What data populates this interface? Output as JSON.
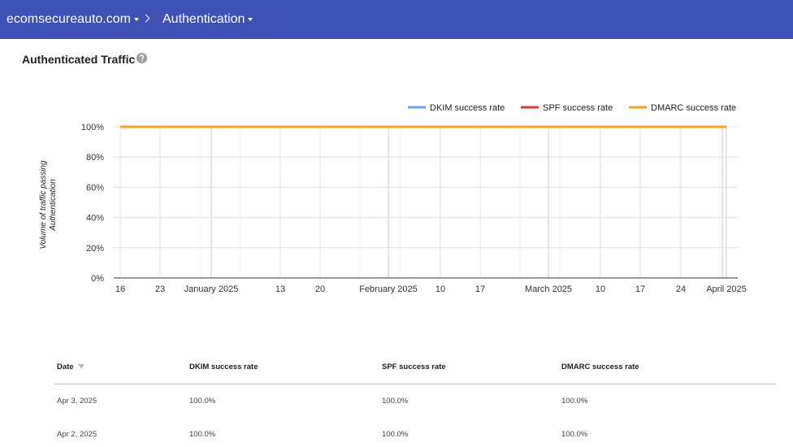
{
  "header": {
    "domain": "ecomsecureauto.com",
    "section": "Authentication"
  },
  "panel": {
    "title": "Authenticated Traffic"
  },
  "chart": {
    "type": "line",
    "y_label": "Volume of traffic passing Authentication",
    "categories": [
      "16",
      "23",
      "January 2025",
      "13",
      "20",
      "February 2025",
      "10",
      "17",
      "March 2025",
      "10",
      "17",
      "24",
      "April 2025"
    ],
    "ylim": [
      0,
      100
    ],
    "yticks": [
      {
        "value": 0,
        "label": "0%"
      },
      {
        "value": 20,
        "label": "20%"
      },
      {
        "value": 40,
        "label": "40%"
      },
      {
        "value": 60,
        "label": "60%"
      },
      {
        "value": 80,
        "label": "80%"
      },
      {
        "value": 100,
        "label": "100%"
      }
    ],
    "grid": true,
    "legend": "top-right",
    "series": [
      {
        "name": "DKIM success rate",
        "color": "#6ea1f0",
        "values": [
          100,
          100,
          100,
          100,
          100,
          100,
          100,
          100,
          100,
          100,
          100,
          100,
          100
        ]
      },
      {
        "name": "SPF success rate",
        "color": "#e53935",
        "values": [
          100,
          100,
          100,
          100,
          100,
          100,
          100,
          100,
          100,
          100,
          100,
          100,
          100
        ]
      },
      {
        "name": "DMARC success rate",
        "color": "#f4a522",
        "values": [
          100,
          100,
          100,
          100,
          100,
          100,
          100,
          100,
          100,
          100,
          100,
          100,
          100
        ]
      }
    ]
  },
  "table": {
    "columns": [
      "Date",
      "DKIM success rate",
      "SPF success rate",
      "DMARC success rate"
    ],
    "rows": [
      [
        "Apr 3, 2025",
        "100.0%",
        "100.0%",
        "100.0%"
      ],
      [
        "Apr 2, 2025",
        "100.0%",
        "100.0%",
        "100.0%"
      ]
    ]
  }
}
